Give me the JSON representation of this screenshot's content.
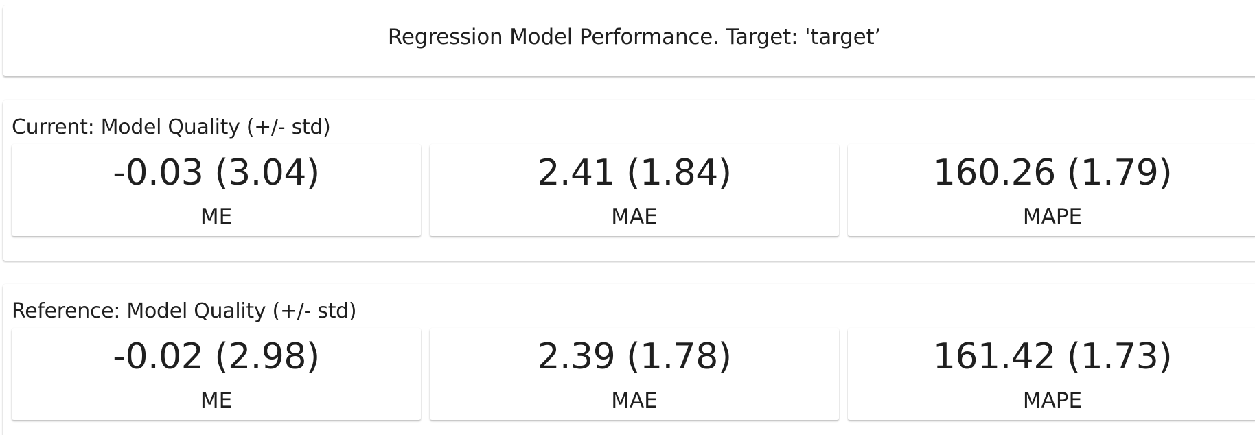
{
  "header": {
    "title": "Regression Model Performance. Target: 'target’"
  },
  "current": {
    "title": "Current: Model Quality (+/- std)",
    "metrics": [
      {
        "value": "-0.03 (3.04)",
        "label": "ME"
      },
      {
        "value": "2.41 (1.84)",
        "label": "MAE"
      },
      {
        "value": "160.26 (1.79)",
        "label": "MAPE"
      }
    ]
  },
  "reference": {
    "title": "Reference: Model Quality (+/- std)",
    "metrics": [
      {
        "value": "-0.02 (2.98)",
        "label": "ME"
      },
      {
        "value": "2.39 (1.78)",
        "label": "MAE"
      },
      {
        "value": "161.42 (1.73)",
        "label": "MAPE"
      }
    ]
  }
}
